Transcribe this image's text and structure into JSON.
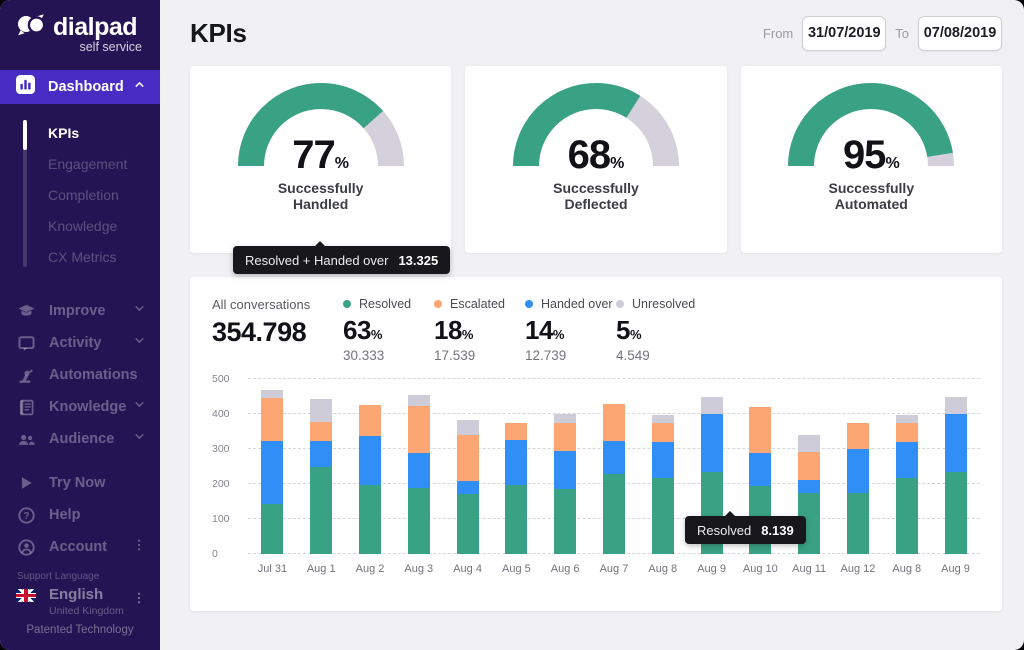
{
  "colors": {
    "sidebar_bg": "#241453",
    "active_purple": "#482DC4",
    "green": "#3AA284",
    "orange": "#FBA673",
    "blue": "#2F8FF7",
    "gray": "#CFCCDA",
    "gauge_track": "#D4D1DC",
    "tooltip_bg": "#17171C"
  },
  "sidebar": {
    "logo": {
      "brand": "dialpad",
      "sub": "self service"
    },
    "dashboard": {
      "label": "Dashboard",
      "icon": "dashboard",
      "chevron": "up"
    },
    "dashboard_children": [
      {
        "label": "KPIs",
        "active": true
      },
      {
        "label": "Engagement",
        "active": false
      },
      {
        "label": "Completion",
        "active": false
      },
      {
        "label": "Knowledge",
        "active": false
      },
      {
        "label": "CX Metrics",
        "active": false
      }
    ],
    "sections": [
      {
        "label": "Improve",
        "icon": "improve",
        "chevron": true
      },
      {
        "label": "Activity",
        "icon": "activity",
        "chevron": true
      },
      {
        "label": "Automations",
        "icon": "automations",
        "chevron": false
      },
      {
        "label": "Knowledge",
        "icon": "knowledge",
        "chevron": true
      },
      {
        "label": "Audience",
        "icon": "audience",
        "chevron": true
      }
    ],
    "footer_items": [
      {
        "label": "Try Now",
        "icon": "try-now",
        "kebab": false
      },
      {
        "label": "Help",
        "icon": "help",
        "kebab": false
      },
      {
        "label": "Account",
        "icon": "account",
        "kebab": true
      }
    ],
    "support_language_label": "Support Language",
    "language": {
      "label": "English",
      "sub": "United Kingdom"
    },
    "patented": "Patented Technology"
  },
  "header": {
    "title": "KPIs",
    "from_label": "From",
    "to_label": "To",
    "date_from": "31/07/2019",
    "date_to": "07/08/2019"
  },
  "gauges": [
    {
      "value": 77,
      "unit": "%",
      "label": "Successfully Handled"
    },
    {
      "value": 68,
      "unit": "%",
      "label": "Successfully Deflected"
    },
    {
      "value": 95,
      "unit": "%",
      "label": "Successfully Automated"
    }
  ],
  "tooltips": [
    {
      "label": "Resolved + Handed over",
      "value": "13.325"
    },
    {
      "label": "Resolved",
      "value": "8.139"
    }
  ],
  "chart_data": {
    "type": "bar",
    "stacked": true,
    "title": "",
    "xlabel": "",
    "ylabel": "",
    "ylim": [
      0,
      500
    ],
    "y_ticks": [
      "0",
      "100",
      "200",
      "300",
      "400",
      "500"
    ],
    "grid": "dashed horizontal",
    "legend_position": "top",
    "all_conversations": {
      "label": "All conversations",
      "value": "354.798"
    },
    "stats": [
      {
        "name": "Resolved",
        "color": "#3AA284",
        "percent": "63",
        "unit": "%",
        "count": "30.333"
      },
      {
        "name": "Escalated",
        "color": "#FBA673",
        "percent": "18",
        "unit": "%",
        "count": "17.539"
      },
      {
        "name": "Handed over",
        "color": "#2F8FF7",
        "percent": "14",
        "unit": "%",
        "count": "12.739"
      },
      {
        "name": "Unresolved",
        "color": "#CFCCDA",
        "percent": "5",
        "unit": "%",
        "count": "4.549"
      }
    ],
    "categories": [
      "Jul 31",
      "Aug 1",
      "Aug 2",
      "Aug 3",
      "Aug 4",
      "Aug 5",
      "Aug 6",
      "Aug 7",
      "Aug 8",
      "Aug 9",
      "Aug 10",
      "Aug 11",
      "Aug 12",
      "Aug 8",
      "Aug 9"
    ],
    "series": [
      {
        "name": "Resolved",
        "color": "#3AA284",
        "values": [
          143,
          248,
          198,
          190,
          172,
          198,
          185,
          228,
          218,
          233,
          194,
          175,
          175,
          218,
          233
        ]
      },
      {
        "name": "Handed over",
        "color": "#2F8FF7",
        "values": [
          180,
          75,
          140,
          100,
          38,
          127,
          108,
          95,
          102,
          166,
          94,
          37,
          126,
          102,
          166
        ]
      },
      {
        "name": "Escalated",
        "color": "#FBA673",
        "values": [
          122,
          53,
          87,
          133,
          130,
          50,
          82,
          105,
          53,
          0,
          132,
          79,
          72,
          53,
          0
        ]
      },
      {
        "name": "Unresolved",
        "color": "#CFCCDA",
        "values": [
          25,
          66,
          0,
          30,
          43,
          0,
          25,
          0,
          25,
          50,
          0,
          48,
          0,
          25,
          50
        ]
      }
    ]
  }
}
